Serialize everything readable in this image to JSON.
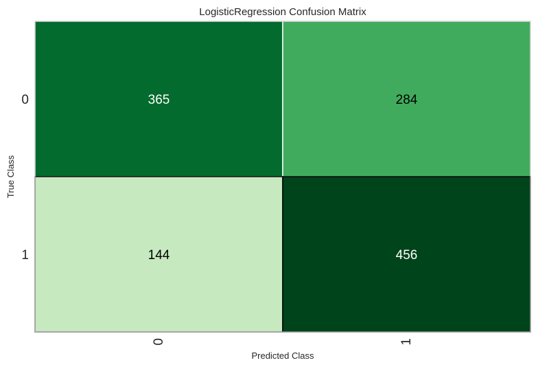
{
  "chart_data": {
    "type": "heatmap",
    "title": "LogisticRegression Confusion Matrix",
    "xlabel": "Predicted Class",
    "ylabel": "True Class",
    "x_categories": [
      "0",
      "1"
    ],
    "y_categories": [
      "0",
      "1"
    ],
    "values": [
      [
        365,
        284
      ],
      [
        144,
        456
      ]
    ],
    "colormap": "Greens",
    "cell_colors": [
      [
        "#026b2d",
        "#41ab5d"
      ],
      [
        "#c7e9c0",
        "#00441b"
      ]
    ],
    "label_colors": [
      [
        "#ffffff",
        "#000000"
      ],
      [
        "#000000",
        "#ffffff"
      ]
    ],
    "x_tick_rotation": "vertical"
  }
}
